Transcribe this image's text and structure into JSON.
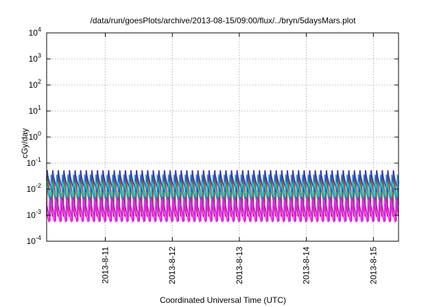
{
  "chart_data": {
    "type": "line",
    "title": "/data/run/goesPlots/archive/2013-08-15/09:00/flux/../bryn/5daysMars.plot",
    "xlabel": "Coordinated Universal Time (UTC)",
    "ylabel": "cGy/day",
    "yscale": "log",
    "ylim": [
      0.0001,
      10000
    ],
    "xlim": [
      "2013-08-10T03:00",
      "2013-08-15T09:00"
    ],
    "grid": true,
    "x_ticks": [
      "2013-8-11",
      "2013-8-12",
      "2013-8-13",
      "2013-8-14",
      "2013-8-15"
    ],
    "y_ticks": [
      {
        "base": "10",
        "exp": "-4",
        "value": 0.0001
      },
      {
        "base": "10",
        "exp": "-3",
        "value": 0.001
      },
      {
        "base": "10",
        "exp": "-2",
        "value": 0.01
      },
      {
        "base": "10",
        "exp": "-1",
        "value": 0.1
      },
      {
        "base": "10",
        "exp": "0",
        "value": 1
      },
      {
        "base": "10",
        "exp": "1",
        "value": 10
      },
      {
        "base": "10",
        "exp": "2",
        "value": 100
      },
      {
        "base": "10",
        "exp": "3",
        "value": 1000
      },
      {
        "base": "10",
        "exp": "4",
        "value": 10000
      }
    ],
    "cycle_hours": 2.0,
    "series": [
      {
        "color": "#d62020",
        "peak": 0.07,
        "trough": 0.0009,
        "phase": 0.0
      },
      {
        "color": "#2bb02b",
        "peak": 0.045,
        "trough": 0.0015,
        "phase": 0.15
      },
      {
        "color": "#1e9bd6",
        "peak": 0.035,
        "trough": 0.0025,
        "phase": 0.3
      },
      {
        "color": "#2b3ec7",
        "peak": 0.055,
        "trough": 0.008,
        "phase": 0.05
      },
      {
        "color": "#a02bc0",
        "peak": 0.008,
        "trough": 0.0006,
        "phase": 0.4
      },
      {
        "color": "#ff1aff",
        "peak": 0.005,
        "trough": 0.0005,
        "phase": 0.55
      },
      {
        "color": "#1fc8c8",
        "peak": 0.02,
        "trough": 0.005,
        "phase": 0.25
      }
    ]
  }
}
